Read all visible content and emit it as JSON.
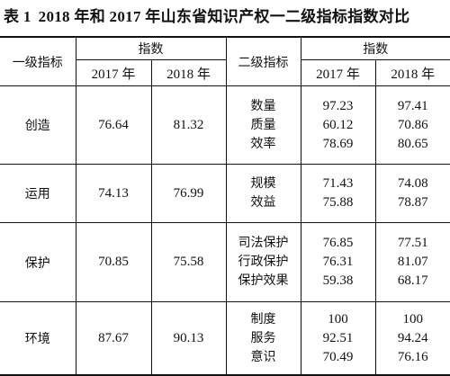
{
  "title": {
    "number": "表 1",
    "text": "2018 年和 2017 年山东省知识产权一二级指标指数对比"
  },
  "header": {
    "level1": "一级指标",
    "index": "指数",
    "y2017": "2017 年",
    "y2018": "2018 年",
    "level2": "二级指标",
    "index2": "指数",
    "y2017b": "2017 年",
    "y2018b": "2018 年"
  },
  "rows": [
    {
      "name": "创造",
      "v2017": "76.64",
      "v2018": "81.32",
      "sub": [
        {
          "name": "数量",
          "v2017": "97.23",
          "v2018": "97.41"
        },
        {
          "name": "质量",
          "v2017": "60.12",
          "v2018": "70.86"
        },
        {
          "name": "效率",
          "v2017": "78.69",
          "v2018": "80.65"
        }
      ]
    },
    {
      "name": "运用",
      "v2017": "74.13",
      "v2018": "76.99",
      "sub": [
        {
          "name": "规模",
          "v2017": "71.43",
          "v2018": "74.08"
        },
        {
          "name": "效益",
          "v2017": "75.88",
          "v2018": "78.87"
        }
      ]
    },
    {
      "name": "保护",
      "v2017": "70.85",
      "v2018": "75.58",
      "sub": [
        {
          "name": "司法保护",
          "v2017": "76.85",
          "v2018": "77.51"
        },
        {
          "name": "行政保护",
          "v2017": "76.31",
          "v2018": "81.07"
        },
        {
          "name": "保护效果",
          "v2017": "59.38",
          "v2018": "68.17"
        }
      ]
    },
    {
      "name": "环境",
      "v2017": "87.67",
      "v2018": "90.13",
      "sub": [
        {
          "name": "制度",
          "v2017": "100",
          "v2018": "100"
        },
        {
          "name": "服务",
          "v2017": "92.51",
          "v2018": "94.24"
        },
        {
          "name": "意识",
          "v2017": "70.49",
          "v2018": "76.16"
        }
      ]
    }
  ]
}
